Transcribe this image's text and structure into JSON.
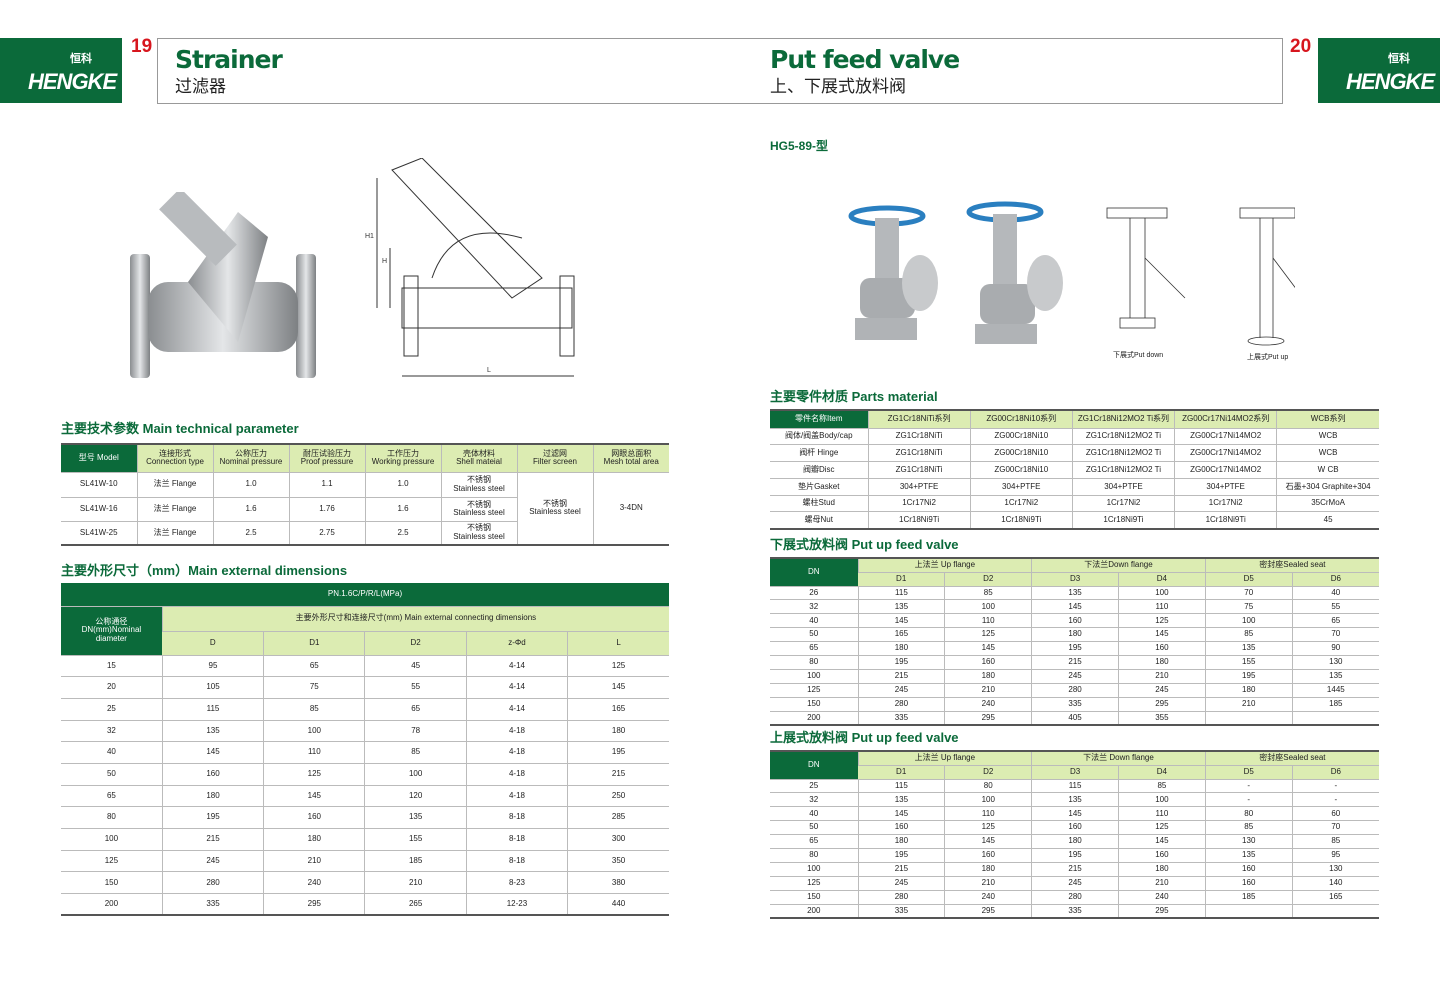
{
  "brand": {
    "name": "HENGKE",
    "name_cn": "恒科"
  },
  "left_page": {
    "page_number": "19",
    "title_en": "Strainer",
    "title_cn": "过滤器",
    "tech_title": "主要技术参数 Main technical parameter",
    "tech_table": {
      "headers": [
        "型号 Model",
        "连接形式\nConnection type",
        "公称压力\nNominal pressure",
        "耐压试验压力\nProof pressure",
        "工作压力\nWorking pressure",
        "壳体材料\nShell mateial",
        "过滤网\nFilter screen",
        "网眼总面积\nMesh total area"
      ],
      "rows": [
        [
          "SL41W-10",
          "法兰 Flange",
          "1.0",
          "1.1",
          "1.0",
          "不锈钢\nStainless steel"
        ],
        [
          "SL41W-16",
          "法兰 Flange",
          "1.6",
          "1.76",
          "1.6",
          "不锈钢\nStainless steel"
        ],
        [
          "SL41W-25",
          "法兰 Flange",
          "2.5",
          "2.75",
          "2.5",
          "不锈钢\nStainless steel"
        ]
      ],
      "filter_screen": "不锈钢\nStainless steel",
      "mesh_area": "3-4DN"
    },
    "dims_title": "主要外形尺寸（mm）Main external dimensions",
    "dims_table": {
      "pn": "PN.1.6C/P/R/L(MPa)",
      "dn_header": "公称通径\nDN(mm)Nominal\ndiameter",
      "group_header": "主要外形尺寸和连接尺寸(mm) Main external connecting dimensions",
      "columns": [
        "D",
        "D1",
        "D2",
        "z-Φd",
        "L"
      ],
      "rows": [
        [
          "15",
          "95",
          "65",
          "45",
          "4-14",
          "125"
        ],
        [
          "20",
          "105",
          "75",
          "55",
          "4-14",
          "145"
        ],
        [
          "25",
          "115",
          "85",
          "65",
          "4-14",
          "165"
        ],
        [
          "32",
          "135",
          "100",
          "78",
          "4-18",
          "180"
        ],
        [
          "40",
          "145",
          "110",
          "85",
          "4-18",
          "195"
        ],
        [
          "50",
          "160",
          "125",
          "100",
          "4-18",
          "215"
        ],
        [
          "65",
          "180",
          "145",
          "120",
          "4-18",
          "250"
        ],
        [
          "80",
          "195",
          "160",
          "135",
          "8-18",
          "285"
        ],
        [
          "100",
          "215",
          "180",
          "155",
          "8-18",
          "300"
        ],
        [
          "125",
          "245",
          "210",
          "185",
          "8-18",
          "350"
        ],
        [
          "150",
          "280",
          "240",
          "210",
          "8-23",
          "380"
        ],
        [
          "200",
          "335",
          "295",
          "265",
          "12-23",
          "440"
        ]
      ]
    }
  },
  "right_page": {
    "page_number": "20",
    "title_en": "Put feed valve",
    "title_cn": "上、下展式放料阀",
    "model": "HG5-89-型",
    "caption_down": "下展式Put down",
    "caption_up": "上展式Put up",
    "parts_title": "主要零件材质 Parts material",
    "parts_table": {
      "headers": [
        "零件名称Item",
        "ZG1Cr18NiTi系列",
        "ZG00Cr18Ni10系列",
        "ZG1Cr18Ni12MO2 Ti系列",
        "ZG00Cr17Ni14MO2系列",
        "WCB系列"
      ],
      "rows": [
        [
          "阀体/阀盖Body/cap",
          "ZG1Cr18NiTi",
          "ZG00Cr18Ni10",
          "ZG1Cr18Ni12MO2 Ti",
          "ZG00Cr17Ni14MO2",
          "WCB"
        ],
        [
          "阀杆 Hinge",
          "ZG1Cr18NiTi",
          "ZG00Cr18Ni10",
          "ZG1Cr18Ni12MO2 Ti",
          "ZG00Cr17Ni14MO2",
          "WCB"
        ],
        [
          "阀瓣Disc",
          "ZG1Cr18NiTi",
          "ZG00Cr18Ni10",
          "ZG1Cr18Ni12MO2 Ti",
          "ZG00Cr17Ni14MO2",
          "W CB"
        ],
        [
          "垫片Gasket",
          "304+PTFE",
          "304+PTFE",
          "304+PTFE",
          "304+PTFE",
          "石墨+304 Graphite+304"
        ],
        [
          "螺柱Stud",
          "1Cr17Ni2",
          "1Cr17Ni2",
          "1Cr17Ni2",
          "1Cr17Ni2",
          "35CrMoA"
        ],
        [
          "螺母Nut",
          "1Cr18Ni9Ti",
          "1Cr18Ni9Ti",
          "1Cr18Ni9Ti",
          "1Cr18Ni9Ti",
          "45"
        ]
      ]
    },
    "down_title": "下展式放料阀 Put up feed valve",
    "down_table": {
      "groups": [
        "上法兰 Up flange",
        "下法兰Down flange",
        "密封座Sealed seat"
      ],
      "columns": [
        "DN",
        "D1",
        "D2",
        "D3",
        "D4",
        "D5",
        "D6"
      ],
      "rows": [
        [
          "26",
          "115",
          "85",
          "135",
          "100",
          "70",
          "40"
        ],
        [
          "32",
          "135",
          "100",
          "145",
          "110",
          "75",
          "55"
        ],
        [
          "40",
          "145",
          "110",
          "160",
          "125",
          "100",
          "65"
        ],
        [
          "50",
          "165",
          "125",
          "180",
          "145",
          "85",
          "70"
        ],
        [
          "65",
          "180",
          "145",
          "195",
          "160",
          "135",
          "90"
        ],
        [
          "80",
          "195",
          "160",
          "215",
          "180",
          "155",
          "130"
        ],
        [
          "100",
          "215",
          "180",
          "245",
          "210",
          "195",
          "135"
        ],
        [
          "125",
          "245",
          "210",
          "280",
          "245",
          "180",
          "1445"
        ],
        [
          "150",
          "280",
          "240",
          "335",
          "295",
          "210",
          "185"
        ],
        [
          "200",
          "335",
          "295",
          "405",
          "355",
          "",
          ""
        ]
      ]
    },
    "up_title": "上展式放料阀 Put up feed valve",
    "up_table": {
      "groups": [
        "上法兰 Up flange",
        "下法兰 Down flange",
        "密封座Sealed seat"
      ],
      "columns": [
        "DN",
        "D1",
        "D2",
        "D3",
        "D4",
        "D5",
        "D6"
      ],
      "rows": [
        [
          "25",
          "115",
          "80",
          "115",
          "85",
          "-",
          "-"
        ],
        [
          "32",
          "135",
          "100",
          "135",
          "100",
          "-",
          "-"
        ],
        [
          "40",
          "145",
          "110",
          "145",
          "110",
          "80",
          "60"
        ],
        [
          "50",
          "160",
          "125",
          "160",
          "125",
          "85",
          "70"
        ],
        [
          "65",
          "180",
          "145",
          "180",
          "145",
          "130",
          "85"
        ],
        [
          "80",
          "195",
          "160",
          "195",
          "160",
          "135",
          "95"
        ],
        [
          "100",
          "215",
          "180",
          "215",
          "180",
          "160",
          "130"
        ],
        [
          "125",
          "245",
          "210",
          "245",
          "210",
          "160",
          "140"
        ],
        [
          "150",
          "280",
          "240",
          "280",
          "240",
          "185",
          "165"
        ],
        [
          "200",
          "335",
          "295",
          "335",
          "295",
          "",
          ""
        ]
      ]
    }
  },
  "colors": {
    "brand_green": "#0b6a3a",
    "header_light_green": "#dcecb2",
    "page_number_red": "#d7161e",
    "handwheel_blue": "#2a7fc0"
  }
}
